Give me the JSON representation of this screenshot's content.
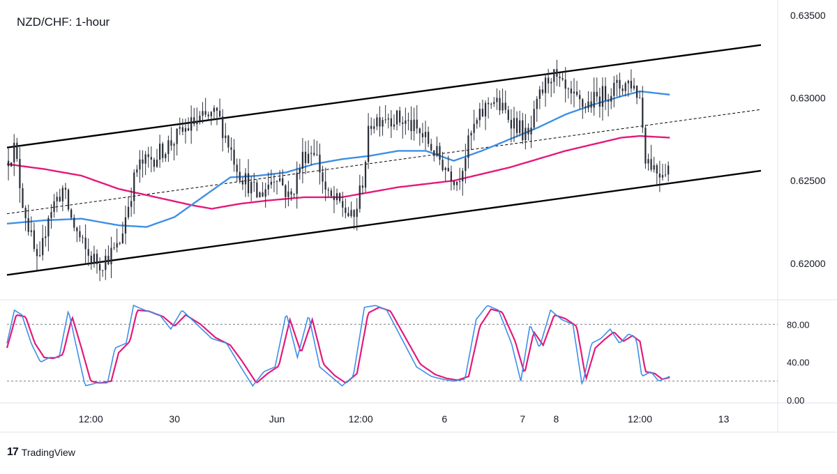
{
  "chart_title": "NZD/CHF: 1-hour",
  "brand": {
    "logo": "17",
    "name": "TradingView"
  },
  "colors": {
    "candle": "#2a2e39",
    "ma_fast": "#3d8fe6",
    "ma_slow": "#e4197a",
    "stoch_k": "#3d8fe6",
    "stoch_d": "#e4197a",
    "channel": "#000000",
    "grid": "#e0e3eb"
  },
  "chart_data": [
    {
      "type": "candlestick",
      "title": "NZD/CHF: 1-hour",
      "ylim": [
        0.6178,
        0.6355
      ],
      "y_ticks": [
        "0.63500",
        "0.63000",
        "0.62500",
        "0.62000"
      ],
      "y_tick_values": [
        0.635,
        0.63,
        0.625,
        0.62
      ],
      "x_ticks": [
        "12:00",
        "30",
        "Jun",
        "12:00",
        "6",
        "7",
        "8",
        "12:00",
        "13"
      ],
      "x_tick_positions": [
        4.5,
        9.0,
        14.5,
        19.0,
        23.5,
        27.7,
        29.5,
        34.0,
        38.5
      ],
      "x_range": [
        0,
        41.4
      ],
      "candles_index_range": [
        0,
        35.6
      ],
      "price_keypoints": [
        [
          0,
          0.6262
        ],
        [
          0.4,
          0.627
        ],
        [
          0.8,
          0.624
        ],
        [
          1.4,
          0.621
        ],
        [
          1.7,
          0.6195
        ],
        [
          2.2,
          0.623
        ],
        [
          3.0,
          0.6245
        ],
        [
          3.5,
          0.6225
        ],
        [
          4.3,
          0.6205
        ],
        [
          5.0,
          0.62
        ],
        [
          6.0,
          0.621
        ],
        [
          6.6,
          0.624
        ],
        [
          7.0,
          0.6258
        ],
        [
          8.0,
          0.6265
        ],
        [
          9.0,
          0.6275
        ],
        [
          10.0,
          0.6285
        ],
        [
          11.3,
          0.629
        ],
        [
          12.5,
          0.6255
        ],
        [
          13.5,
          0.624
        ],
        [
          14.5,
          0.6255
        ],
        [
          15.2,
          0.6238
        ],
        [
          15.9,
          0.6265
        ],
        [
          16.5,
          0.627
        ],
        [
          17.2,
          0.624
        ],
        [
          18.0,
          0.6235
        ],
        [
          18.6,
          0.6225
        ],
        [
          19.1,
          0.625
        ],
        [
          19.5,
          0.6285
        ],
        [
          20.3,
          0.629
        ],
        [
          21.5,
          0.6285
        ],
        [
          22.5,
          0.6275
        ],
        [
          23.3,
          0.6262
        ],
        [
          24.2,
          0.625
        ],
        [
          25.0,
          0.628
        ],
        [
          26.0,
          0.63
        ],
        [
          27.3,
          0.6285
        ],
        [
          28.0,
          0.6275
        ],
        [
          28.6,
          0.63
        ],
        [
          29.2,
          0.6315
        ],
        [
          30.2,
          0.63
        ],
        [
          31.0,
          0.6295
        ],
        [
          32.5,
          0.6305
        ],
        [
          33.5,
          0.631
        ],
        [
          34.0,
          0.63
        ],
        [
          34.3,
          0.6265
        ],
        [
          35.0,
          0.6255
        ],
        [
          35.6,
          0.626
        ]
      ],
      "ma_fast": [
        [
          0,
          0.6224
        ],
        [
          2.0,
          0.6226
        ],
        [
          4.0,
          0.6227
        ],
        [
          6.0,
          0.6223
        ],
        [
          7.5,
          0.6222
        ],
        [
          9.0,
          0.6228
        ],
        [
          10.5,
          0.624
        ],
        [
          12.0,
          0.6252
        ],
        [
          13.5,
          0.6253
        ],
        [
          15.0,
          0.6255
        ],
        [
          16.5,
          0.626
        ],
        [
          18.0,
          0.6263
        ],
        [
          19.5,
          0.6265
        ],
        [
          21.0,
          0.6268
        ],
        [
          22.5,
          0.6268
        ],
        [
          24.0,
          0.6262
        ],
        [
          25.5,
          0.6268
        ],
        [
          27.0,
          0.6275
        ],
        [
          28.5,
          0.6282
        ],
        [
          30.0,
          0.629
        ],
        [
          31.5,
          0.6296
        ],
        [
          33.0,
          0.6301
        ],
        [
          34.0,
          0.6304
        ],
        [
          35.6,
          0.6302
        ]
      ],
      "ma_slow": [
        [
          0,
          0.626
        ],
        [
          2.0,
          0.6257
        ],
        [
          4.0,
          0.6253
        ],
        [
          6.0,
          0.6245
        ],
        [
          8.0,
          0.624
        ],
        [
          10.0,
          0.6235
        ],
        [
          11.0,
          0.6233
        ],
        [
          12.5,
          0.6236
        ],
        [
          14.0,
          0.6238
        ],
        [
          16.0,
          0.624
        ],
        [
          18.0,
          0.624
        ],
        [
          19.5,
          0.6243
        ],
        [
          21.0,
          0.6246
        ],
        [
          22.5,
          0.6248
        ],
        [
          24.0,
          0.625
        ],
        [
          25.5,
          0.6254
        ],
        [
          27.0,
          0.6258
        ],
        [
          28.5,
          0.6263
        ],
        [
          30.0,
          0.6268
        ],
        [
          31.5,
          0.6272
        ],
        [
          33.0,
          0.6276
        ],
        [
          34.0,
          0.6277
        ],
        [
          35.6,
          0.6276
        ]
      ],
      "channel": {
        "upper": [
          [
            0,
            0.627
          ],
          [
            40.5,
            0.6332
          ]
        ],
        "middle": [
          [
            0,
            0.623
          ],
          [
            40.5,
            0.6293
          ]
        ],
        "lower": [
          [
            0,
            0.6193
          ],
          [
            40.5,
            0.6256
          ]
        ]
      }
    },
    {
      "type": "line",
      "indicator": "stochastic",
      "ylim": [
        -3,
        106
      ],
      "y_ticks": [
        "80.00",
        "40.00",
        "0.00"
      ],
      "y_tick_values": [
        80,
        40,
        0
      ],
      "levels": [
        80,
        20
      ],
      "k_keypoints": [
        [
          0,
          60
        ],
        [
          0.4,
          95
        ],
        [
          0.8,
          90
        ],
        [
          1.3,
          60
        ],
        [
          1.8,
          40
        ],
        [
          2.3,
          45
        ],
        [
          2.8,
          45
        ],
        [
          3.3,
          95
        ],
        [
          3.8,
          50
        ],
        [
          4.2,
          15
        ],
        [
          4.8,
          18
        ],
        [
          5.4,
          18
        ],
        [
          5.8,
          55
        ],
        [
          6.4,
          60
        ],
        [
          6.8,
          100
        ],
        [
          7.4,
          95
        ],
        [
          8.2,
          90
        ],
        [
          8.8,
          75
        ],
        [
          9.4,
          95
        ],
        [
          10.2,
          80
        ],
        [
          11.0,
          65
        ],
        [
          11.8,
          60
        ],
        [
          12.4,
          40
        ],
        [
          13.2,
          15
        ],
        [
          13.8,
          30
        ],
        [
          14.4,
          35
        ],
        [
          15.0,
          92
        ],
        [
          15.6,
          45
        ],
        [
          16.2,
          90
        ],
        [
          16.8,
          35
        ],
        [
          17.4,
          25
        ],
        [
          18.0,
          15
        ],
        [
          18.6,
          25
        ],
        [
          19.2,
          98
        ],
        [
          19.8,
          100
        ],
        [
          20.4,
          95
        ],
        [
          21.2,
          65
        ],
        [
          22.0,
          35
        ],
        [
          22.8,
          25
        ],
        [
          23.4,
          22
        ],
        [
          24.0,
          20
        ],
        [
          24.6,
          22
        ],
        [
          25.2,
          85
        ],
        [
          25.8,
          100
        ],
        [
          26.4,
          95
        ],
        [
          27.1,
          60
        ],
        [
          27.6,
          20
        ],
        [
          28.1,
          80
        ],
        [
          28.6,
          55
        ],
        [
          29.2,
          95
        ],
        [
          29.8,
          85
        ],
        [
          30.4,
          80
        ],
        [
          30.9,
          15
        ],
        [
          31.4,
          60
        ],
        [
          31.9,
          65
        ],
        [
          32.4,
          75
        ],
        [
          32.9,
          60
        ],
        [
          33.4,
          70
        ],
        [
          33.8,
          65
        ],
        [
          34.1,
          25
        ],
        [
          34.6,
          30
        ],
        [
          35.0,
          20
        ],
        [
          35.6,
          25
        ]
      ],
      "d_keypoints": [
        [
          0,
          55
        ],
        [
          0.5,
          90
        ],
        [
          1.0,
          88
        ],
        [
          1.5,
          60
        ],
        [
          2.0,
          45
        ],
        [
          2.5,
          44
        ],
        [
          3.0,
          48
        ],
        [
          3.5,
          88
        ],
        [
          4.0,
          55
        ],
        [
          4.5,
          20
        ],
        [
          5.0,
          18
        ],
        [
          5.6,
          20
        ],
        [
          6.0,
          50
        ],
        [
          6.6,
          62
        ],
        [
          7.0,
          95
        ],
        [
          7.6,
          94
        ],
        [
          8.4,
          88
        ],
        [
          9.0,
          78
        ],
        [
          9.6,
          90
        ],
        [
          10.4,
          80
        ],
        [
          11.2,
          66
        ],
        [
          12.0,
          58
        ],
        [
          12.6,
          42
        ],
        [
          13.4,
          18
        ],
        [
          14.0,
          28
        ],
        [
          14.6,
          36
        ],
        [
          15.2,
          85
        ],
        [
          15.8,
          50
        ],
        [
          16.4,
          85
        ],
        [
          17.0,
          38
        ],
        [
          17.6,
          26
        ],
        [
          18.2,
          18
        ],
        [
          18.8,
          28
        ],
        [
          19.4,
          92
        ],
        [
          20.0,
          98
        ],
        [
          20.6,
          94
        ],
        [
          21.4,
          66
        ],
        [
          22.2,
          38
        ],
        [
          23.0,
          27
        ],
        [
          23.6,
          23
        ],
        [
          24.2,
          21
        ],
        [
          24.8,
          25
        ],
        [
          25.4,
          78
        ],
        [
          26.0,
          96
        ],
        [
          26.6,
          93
        ],
        [
          27.3,
          62
        ],
        [
          27.8,
          28
        ],
        [
          28.3,
          72
        ],
        [
          28.8,
          58
        ],
        [
          29.4,
          90
        ],
        [
          30.0,
          86
        ],
        [
          30.6,
          78
        ],
        [
          31.1,
          22
        ],
        [
          31.6,
          55
        ],
        [
          32.1,
          64
        ],
        [
          32.6,
          72
        ],
        [
          33.1,
          62
        ],
        [
          33.6,
          68
        ],
        [
          34.0,
          62
        ],
        [
          34.3,
          30
        ],
        [
          34.8,
          28
        ],
        [
          35.2,
          22
        ],
        [
          35.6,
          24
        ]
      ]
    }
  ]
}
